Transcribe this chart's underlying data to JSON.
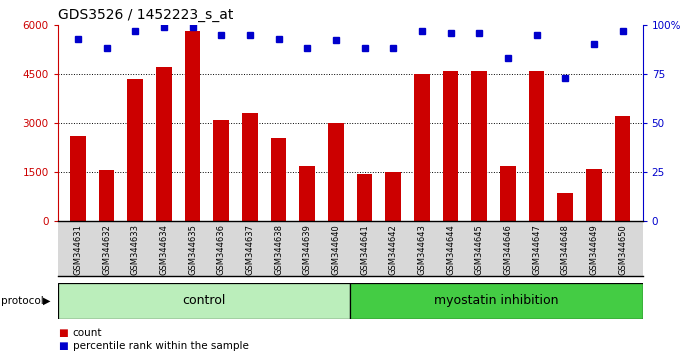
{
  "title": "GDS3526 / 1452223_s_at",
  "categories": [
    "GSM344631",
    "GSM344632",
    "GSM344633",
    "GSM344634",
    "GSM344635",
    "GSM344636",
    "GSM344637",
    "GSM344638",
    "GSM344639",
    "GSM344640",
    "GSM344641",
    "GSM344642",
    "GSM344643",
    "GSM344644",
    "GSM344645",
    "GSM344646",
    "GSM344647",
    "GSM344648",
    "GSM344649",
    "GSM344650"
  ],
  "counts": [
    2600,
    1550,
    4350,
    4700,
    5800,
    3100,
    3300,
    2550,
    1700,
    3000,
    1450,
    1500,
    4500,
    4600,
    4600,
    1700,
    4600,
    850,
    1600,
    3200
  ],
  "percentiles": [
    93,
    88,
    97,
    99,
    99,
    95,
    95,
    93,
    88,
    92,
    88,
    88,
    97,
    96,
    96,
    83,
    95,
    73,
    90,
    97
  ],
  "bar_color": "#cc0000",
  "dot_color": "#0000cc",
  "ylim_left": [
    0,
    6000
  ],
  "ylim_right": [
    0,
    100
  ],
  "yticks_left": [
    0,
    1500,
    3000,
    4500,
    6000
  ],
  "ytick_labels_left": [
    "0",
    "1500",
    "3000",
    "4500",
    "6000"
  ],
  "yticks_right": [
    0,
    25,
    50,
    75,
    100
  ],
  "ytick_labels_right": [
    "0",
    "25",
    "50",
    "75",
    "100%"
  ],
  "control_label": "control",
  "treatment_label": "myostatin inhibition",
  "protocol_label": "protocol",
  "legend_count": "count",
  "legend_pct": "percentile rank within the sample",
  "n_control": 10,
  "ctrl_color": "#bbeebb",
  "treat_color": "#44cc44",
  "xlabel_bg": "#d8d8d8",
  "title_fontsize": 10,
  "tick_fontsize": 7.5,
  "label_fontsize": 9,
  "cat_fontsize": 6.0
}
